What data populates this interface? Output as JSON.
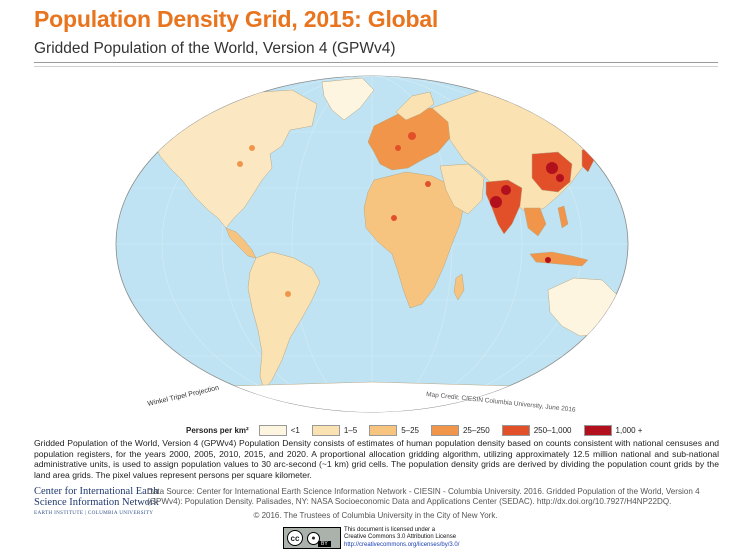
{
  "header": {
    "title": "Population Density Grid, 2015: Global",
    "subtitle": "Gridded Population of the World, Version 4 (GPWv4)"
  },
  "map": {
    "projection_label": "Winkel Tripel Projection",
    "credit_label": "Map Credit: CIESIN Columbia University, June 2016",
    "ocean_color": "#bfe3f2",
    "land_base_color": "#fbe8c2"
  },
  "legend": {
    "title": "Persons per km²",
    "items": [
      {
        "label": "<1",
        "color": "#fdf5df"
      },
      {
        "label": "1–5",
        "color": "#fbe2b2"
      },
      {
        "label": "5–25",
        "color": "#f7c47f"
      },
      {
        "label": "25–250",
        "color": "#f09549"
      },
      {
        "label": "250–1,000",
        "color": "#e2502a"
      },
      {
        "label": "1,000 +",
        "color": "#b3101e"
      }
    ]
  },
  "description": "Gridded Population of the World, Version 4 (GPWv4) Population Density consists of estimates of human population density based on counts consistent with national censuses and population registers, for the years 2000, 2005, 2010, 2015, and 2020. A proportional allocation gridding algorithm, utilizing approximately 12.5 million national and sub-national administrative units, is used to assign population values to 30 arc-second (~1 km) grid cells. The population density grids are derived by dividing the population count grids by the land area grids. The pixel values represent persons per square kilometer.",
  "logo": {
    "line1": "Center for International Earth",
    "line2": "Science Information Network",
    "line3": "EARTH INSTITUTE | COLUMBIA UNIVERSITY"
  },
  "source": "Data Source: Center for International Earth Science Information Network - CIESIN - Columbia University. 2016. Gridded Population of the World, Version 4 (GPWv4): Population Density. Palisades, NY: NASA Socioeconomic Data and Applications Center (SEDAC). http://dx.doi.org/10.7927/H4NP22DQ.",
  "copyright": "© 2016. The Trustees of Columbia University in the City of New York.",
  "license": {
    "badge_cc": "cc",
    "badge_by": "BY",
    "line1": "This document is licensed under a",
    "line2": "Creative Commons 3.0 Attribution License",
    "url": "http://creativecommons.org/licenses/by/3.0/"
  }
}
